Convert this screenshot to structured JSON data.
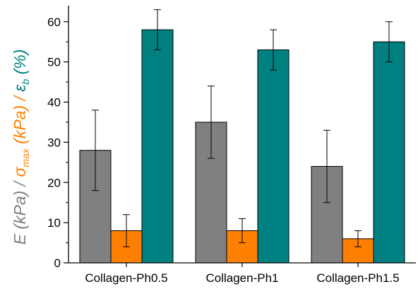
{
  "chart_data": {
    "type": "bar",
    "categories": [
      "Collagen-Ph0.5",
      "Collagen-Ph1",
      "Collagen-Ph1.5"
    ],
    "series": [
      {
        "name": "E (kPa)",
        "color": "#808080",
        "values": [
          28,
          35,
          24
        ],
        "errors": [
          [
            18,
            38
          ],
          [
            26,
            44
          ],
          [
            15,
            33
          ]
        ]
      },
      {
        "name": "σmax (kPa)",
        "color": "#ff8000",
        "values": [
          8,
          8,
          6
        ],
        "errors": [
          [
            4,
            12
          ],
          [
            5,
            11
          ],
          [
            4,
            8
          ]
        ]
      },
      {
        "name": "εb (%)",
        "color": "#008080",
        "values": [
          58,
          53,
          55
        ],
        "errors": [
          [
            53,
            63
          ],
          [
            48,
            58
          ],
          [
            50,
            60
          ]
        ]
      }
    ],
    "yticks": [
      "0",
      "10",
      "20",
      "30",
      "40",
      "50",
      "60"
    ],
    "ylim": [
      0,
      64
    ],
    "ylabel": {
      "e_part": "E (kPa) /",
      "sigma_symbol": "σ",
      "sigma_sub": "max",
      "sigma_unit": " (kPa) /",
      "eps_symbol": "ε",
      "eps_sub": "b",
      "eps_unit": " (%)"
    },
    "grid": false,
    "legend": "none"
  }
}
